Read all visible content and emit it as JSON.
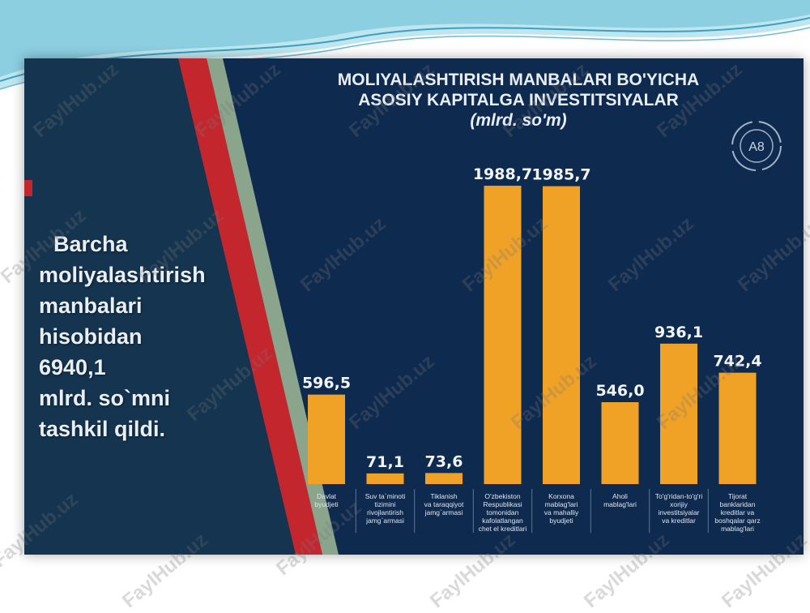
{
  "slide": {
    "summary_lines": [
      "Barcha",
      "moliyalashtirish",
      "manbalari",
      "hisobidan",
      "6940,1",
      "mlrd. so`mni",
      "tashkil qildi."
    ],
    "logo_text": "A8"
  },
  "watermark": "FaylHub.uz",
  "colors": {
    "bar": "#f0a226",
    "panel": "#14344f",
    "accent_red": "#c4262e",
    "accent_green": "#8aa58b",
    "background": "#0f2a4f"
  },
  "chart_data": {
    "type": "bar",
    "title": [
      "MOLIYALASHTIRISH MANBALARI BO'YICHA",
      "ASOSIY KAPITALGA INVESTITSIYALAR"
    ],
    "unit": "(mlrd. so'm)",
    "categories": [
      [
        "Davlat",
        "byudjeti"
      ],
      [
        "Suv ta`minoti",
        "tizimini",
        "rivojlantirish",
        "jamg`armasi"
      ],
      [
        "Tiklanish",
        "va taraqqiyot",
        "jamg`armasi"
      ],
      [
        "O'zbekiston",
        "Respublikasi",
        "tomonidan",
        "kafolatlangan",
        "chet el kreditlari"
      ],
      [
        "Korxona",
        "mablag'lari",
        "va mahalliy",
        "byudjeti"
      ],
      [
        "Aholi",
        "mablag'lari"
      ],
      [
        "To'g'ridan-to'g'ri",
        "xorijiy",
        "investitsiyalar",
        "va kreditlar"
      ],
      [
        "Tijorat",
        "banklaridan",
        "kreditlar va",
        "boshqalar qarz",
        "mablag'lari"
      ]
    ],
    "values": [
      596.5,
      71.1,
      73.6,
      1988.7,
      1985.7,
      546.0,
      936.1,
      742.4
    ],
    "value_labels": [
      "596,5",
      "71,1",
      "73,6",
      "1988,7",
      "1985,7",
      "546,0",
      "936,1",
      "742,4"
    ],
    "ylim": [
      0,
      2000
    ],
    "grid": false,
    "legend": "none"
  }
}
